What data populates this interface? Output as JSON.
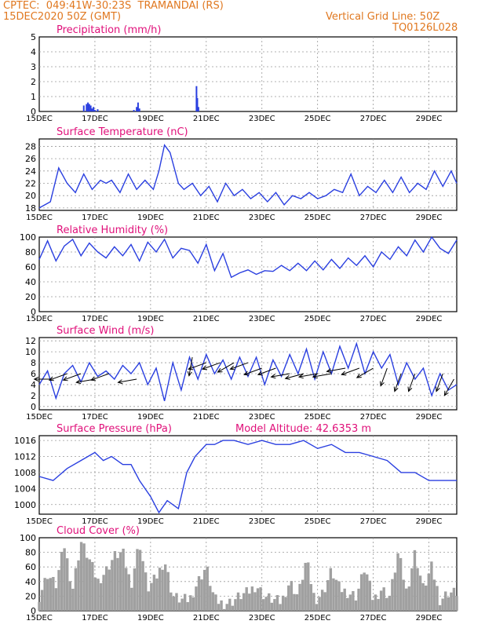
{
  "header": {
    "line1": "CPTEC:  049:41W-30:23S  TRAMANDAI (RS)",
    "line2": "15DEC2020 50Z (GMT)",
    "grid_note": "Vertical Grid Line: 50Z",
    "model_code": "TQ0126L028"
  },
  "x_ticks": [
    "15DEC",
    "17DEC",
    "19DEC",
    "21DEC",
    "23DEC",
    "25DEC",
    "27DEC",
    "29DEC"
  ],
  "colors": {
    "header": "#e07820",
    "title": "#e0107a",
    "line": "#2a3fe0",
    "cloud": "#a0a0a0",
    "arrow": "#000000"
  },
  "chart_data": [
    {
      "type": "bar",
      "title": "Precipitation (mm/h)",
      "ylim": [
        0,
        5
      ],
      "yticks": [
        0,
        1,
        2,
        3,
        4,
        5
      ],
      "x_unit": "days since 15DEC 00Z",
      "bars": [
        [
          1.6,
          0.4
        ],
        [
          1.7,
          0.5
        ],
        [
          1.75,
          0.6
        ],
        [
          1.8,
          0.5
        ],
        [
          1.85,
          0.4
        ],
        [
          1.9,
          0.2
        ],
        [
          1.95,
          0.3
        ],
        [
          2.0,
          0.1
        ],
        [
          2.1,
          0.15
        ],
        [
          3.4,
          0.1
        ],
        [
          3.5,
          0.3
        ],
        [
          3.55,
          0.6
        ],
        [
          3.6,
          0.2
        ],
        [
          5.65,
          1.7
        ],
        [
          5.68,
          0.9
        ],
        [
          5.72,
          0.3
        ]
      ]
    },
    {
      "type": "line",
      "title": "Surface Temperature (nC)",
      "ylim": [
        17.6,
        29.2
      ],
      "yticks": [
        18,
        20,
        22,
        24,
        26,
        28
      ],
      "series": [
        {
          "x": [
            0,
            0.4,
            0.7,
            1.0,
            1.3,
            1.6,
            1.9,
            2.2,
            2.4,
            2.6,
            2.9,
            3.2,
            3.5,
            3.8,
            4.1,
            4.3,
            4.5,
            4.7,
            5.0,
            5.2,
            5.5,
            5.8,
            6.1,
            6.4,
            6.7,
            7.0,
            7.3,
            7.6,
            7.9,
            8.2,
            8.5,
            8.8,
            9.1,
            9.4,
            9.7,
            10.0,
            10.3,
            10.6,
            10.9,
            11.2,
            11.5,
            11.8,
            12.1,
            12.4,
            12.7,
            13.0,
            13.3,
            13.6,
            13.9,
            14.2,
            14.5,
            14.8,
            15.0
          ],
          "y": [
            18,
            19,
            24.5,
            22,
            20.5,
            23.5,
            21,
            22.5,
            22,
            22.5,
            20.5,
            23.5,
            21,
            22.5,
            21,
            24,
            28.2,
            27,
            22,
            21,
            22,
            20,
            21.5,
            19,
            22,
            20,
            21,
            19.5,
            20.5,
            19,
            20.5,
            18.5,
            20,
            19.5,
            20.5,
            19.5,
            20,
            21,
            20.5,
            23.5,
            20,
            21.5,
            20.5,
            22.5,
            20.5,
            23,
            20.5,
            22,
            21,
            24,
            21.5,
            24,
            22
          ]
        }
      ]
    },
    {
      "type": "line",
      "title": "Relative Humidity (%)",
      "ylim": [
        0,
        100
      ],
      "yticks": [
        0,
        20,
        40,
        60,
        80,
        100
      ],
      "series": [
        {
          "x": [
            0,
            0.3,
            0.6,
            0.9,
            1.2,
            1.5,
            1.8,
            2.1,
            2.4,
            2.7,
            3.0,
            3.3,
            3.6,
            3.9,
            4.2,
            4.5,
            4.8,
            5.1,
            5.4,
            5.7,
            6.0,
            6.3,
            6.6,
            6.9,
            7.2,
            7.5,
            7.8,
            8.1,
            8.4,
            8.7,
            9.0,
            9.3,
            9.6,
            9.9,
            10.2,
            10.5,
            10.8,
            11.1,
            11.4,
            11.7,
            12.0,
            12.3,
            12.6,
            12.9,
            13.2,
            13.5,
            13.8,
            14.1,
            14.4,
            14.7,
            15.0
          ],
          "y": [
            70,
            95,
            68,
            88,
            97,
            75,
            92,
            80,
            72,
            87,
            75,
            90,
            68,
            93,
            80,
            97,
            72,
            85,
            82,
            65,
            90,
            55,
            78,
            46,
            52,
            56,
            50,
            55,
            54,
            62,
            55,
            65,
            55,
            68,
            56,
            70,
            58,
            72,
            62,
            75,
            60,
            80,
            70,
            87,
            75,
            96,
            80,
            100,
            85,
            78,
            96
          ]
        }
      ]
    },
    {
      "type": "line",
      "title": "Surface Wind (m/s)",
      "ylim": [
        -0.6,
        12.6
      ],
      "yticks": [
        0,
        2,
        4,
        6,
        8,
        10,
        12
      ],
      "series": [
        {
          "x": [
            0,
            0.3,
            0.6,
            0.9,
            1.2,
            1.5,
            1.8,
            2.1,
            2.4,
            2.7,
            3.0,
            3.3,
            3.6,
            3.9,
            4.2,
            4.5,
            4.8,
            5.1,
            5.4,
            5.7,
            6.0,
            6.3,
            6.6,
            6.9,
            7.2,
            7.5,
            7.8,
            8.1,
            8.4,
            8.7,
            9.0,
            9.3,
            9.6,
            9.9,
            10.2,
            10.5,
            10.8,
            11.1,
            11.4,
            11.7,
            12.0,
            12.3,
            12.6,
            12.9,
            13.2,
            13.5,
            13.8,
            14.1,
            14.4,
            14.7,
            15.0
          ],
          "y": [
            4,
            6.5,
            1.5,
            6,
            7.5,
            4.5,
            8,
            5.5,
            6.5,
            5,
            7.5,
            6,
            8,
            4,
            7,
            1,
            8,
            3,
            9,
            5,
            9.5,
            6,
            8.5,
            5,
            9,
            5.5,
            9,
            4,
            8.5,
            5.5,
            9.5,
            6,
            10.5,
            5,
            10,
            6,
            11,
            7,
            11.5,
            6,
            10,
            7,
            9.5,
            4,
            8,
            5,
            7,
            2,
            6,
            3,
            4
          ]
        }
      ],
      "arrows": [
        [
          0.5,
          180,
          5
        ],
        [
          1,
          200,
          6
        ],
        [
          1.5,
          200,
          6
        ],
        [
          2,
          190,
          5
        ],
        [
          2.5,
          200,
          6
        ],
        [
          3.5,
          190,
          5
        ],
        [
          5.5,
          260,
          9
        ],
        [
          6,
          200,
          8
        ],
        [
          6.5,
          200,
          8
        ],
        [
          7,
          210,
          8
        ],
        [
          7.5,
          200,
          8
        ],
        [
          8,
          200,
          7
        ],
        [
          8.5,
          200,
          7
        ],
        [
          9,
          190,
          6
        ],
        [
          9.5,
          195,
          6
        ],
        [
          10,
          190,
          6
        ],
        [
          10.5,
          190,
          6
        ],
        [
          11,
          190,
          7
        ],
        [
          11.5,
          200,
          7
        ],
        [
          12,
          210,
          7
        ],
        [
          12.5,
          250,
          7
        ],
        [
          13,
          250,
          6
        ],
        [
          13.5,
          250,
          6
        ],
        [
          14.5,
          250,
          6
        ],
        [
          14.9,
          240,
          5
        ]
      ]
    },
    {
      "type": "line",
      "title": "Surface Pressure (hPa)",
      "annotation": "Model Altitude: 42.6353 m",
      "ylim": [
        997.6,
        1017.2
      ],
      "yticks": [
        1000,
        1004,
        1008,
        1012,
        1016
      ],
      "series": [
        {
          "x": [
            0,
            0.5,
            1.0,
            1.5,
            2.0,
            2.3,
            2.6,
            3.0,
            3.3,
            3.6,
            4.0,
            4.3,
            4.6,
            5.0,
            5.3,
            5.6,
            6.0,
            6.3,
            6.6,
            7.0,
            7.5,
            8.0,
            8.5,
            9.0,
            9.5,
            10.0,
            10.5,
            11.0,
            11.5,
            12.0,
            12.5,
            13.0,
            13.5,
            14.0,
            14.5,
            15.0
          ],
          "y": [
            1007,
            1006,
            1009,
            1011,
            1013,
            1011,
            1012,
            1010,
            1010,
            1006,
            1002,
            998,
            1001,
            999,
            1008,
            1012,
            1015,
            1015,
            1016,
            1016,
            1015,
            1016,
            1015,
            1015,
            1016,
            1014,
            1015,
            1013,
            1013,
            1012,
            1011,
            1008,
            1008,
            1006,
            1006,
            1006
          ]
        }
      ]
    },
    {
      "type": "bar",
      "title": "Cloud Cover (%)",
      "ylim": [
        0,
        100
      ],
      "yticks": [
        0,
        20,
        40,
        60,
        80,
        100
      ],
      "x": [
        0,
        0.3,
        0.6,
        0.9,
        1.2,
        1.5,
        1.8,
        2.1,
        2.4,
        2.7,
        3.0,
        3.3,
        3.6,
        3.9,
        4.2,
        4.5,
        4.8,
        5.1,
        5.4,
        5.7,
        6.0,
        6.3,
        6.6,
        6.9,
        7.2,
        7.5,
        7.8,
        8.1,
        8.4,
        8.7,
        9.0,
        9.3,
        9.6,
        9.9,
        10.2,
        10.5,
        10.8,
        11.1,
        11.4,
        11.7,
        12.0,
        12.3,
        12.6,
        12.9,
        13.2,
        13.5,
        13.8,
        14.1,
        14.4,
        14.7,
        15.0
      ],
      "values": [
        20,
        50,
        35,
        90,
        30,
        95,
        70,
        40,
        55,
        75,
        80,
        35,
        95,
        30,
        45,
        70,
        20,
        15,
        15,
        40,
        60,
        15,
        10,
        12,
        20,
        25,
        35,
        20,
        15,
        12,
        40,
        20,
        70,
        15,
        25,
        55,
        30,
        25,
        20,
        60,
        15,
        30,
        20,
        80,
        25,
        80,
        30,
        60,
        15,
        25,
        25
      ]
    }
  ]
}
